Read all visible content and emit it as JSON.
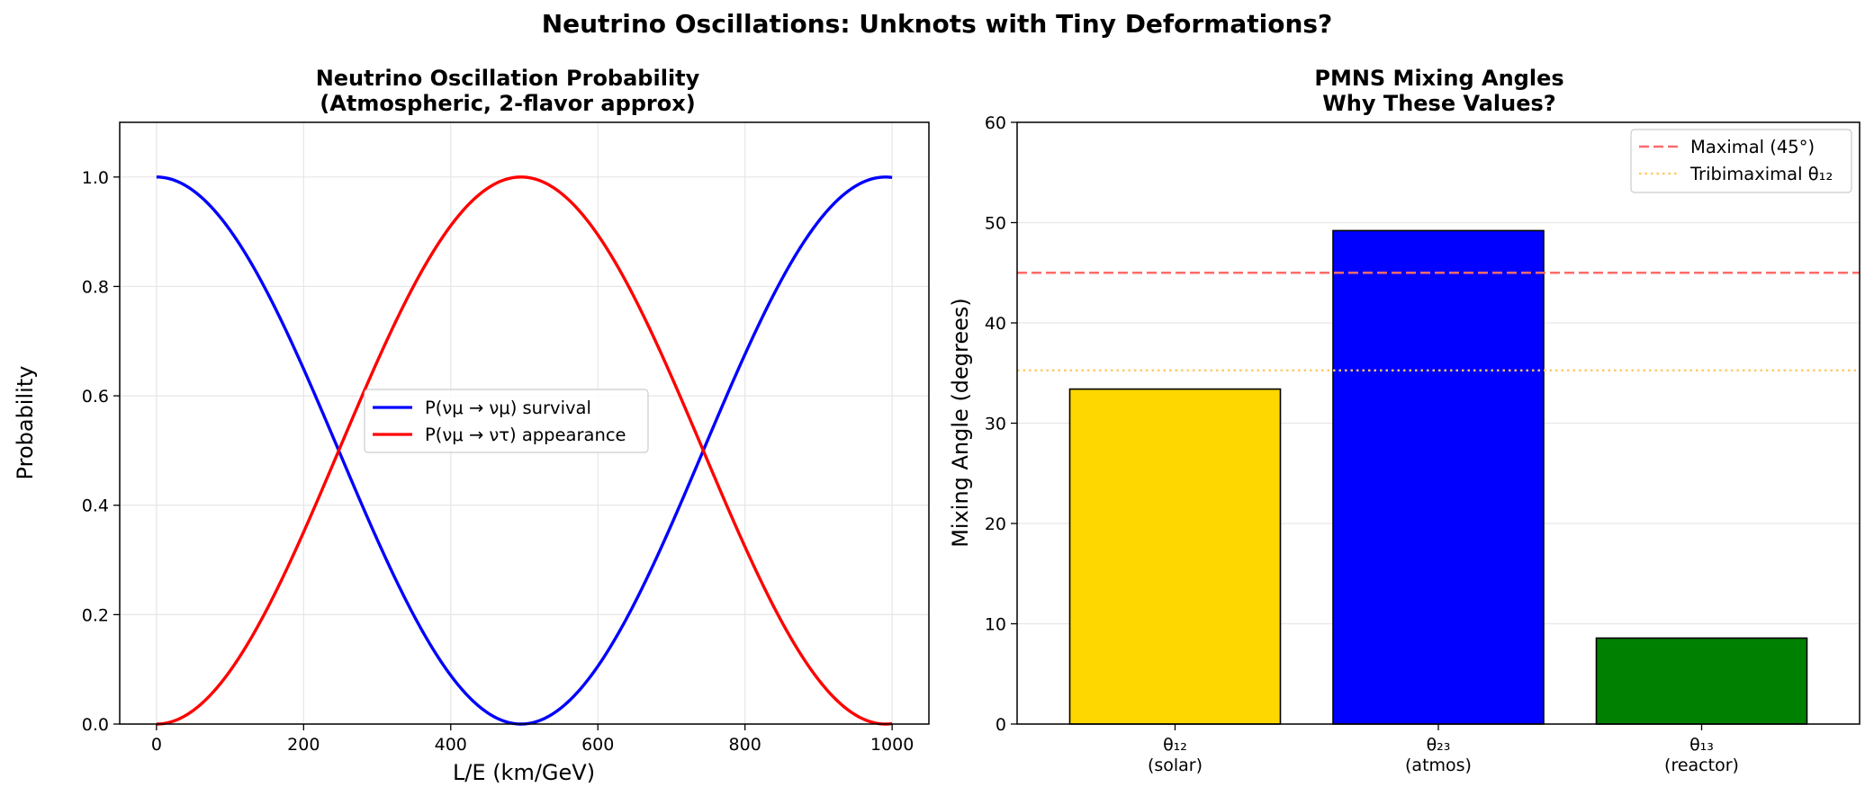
{
  "suptitle": "Neutrino Oscillations: Unknots with Tiny Deformations?",
  "colors": {
    "survival": "#0000ff",
    "appearance": "#ff0000",
    "maximal_line": "#ff6b6b",
    "tribimaximal_line": "#ffc966",
    "grid": "#e6e6e6"
  },
  "chart_data": [
    {
      "type": "line",
      "title_line1": "Neutrino Oscillation Probability",
      "title_line2": "(Atmospheric, 2-flavor approx)",
      "xlabel": "L/E (km/GeV)",
      "ylabel": "Probability",
      "xlim": [
        -50,
        1050
      ],
      "ylim": [
        0,
        1.1
      ],
      "xticks": [
        0,
        200,
        400,
        600,
        800,
        1000
      ],
      "xtick_labels": [
        "0",
        "200",
        "400",
        "600",
        "800",
        "1000"
      ],
      "yticks": [
        0,
        0.2,
        0.4,
        0.6,
        0.8,
        1.0
      ],
      "ytick_labels": [
        "0.0",
        "0.2",
        "0.4",
        "0.6",
        "0.8",
        "1.0"
      ],
      "grid": true,
      "legend_position": "center",
      "x_range": [
        0,
        1000
      ],
      "oscillation_phase_per_unit": 0.00317,
      "series": [
        {
          "name": "P(νμ → νμ) survival",
          "formula": "1 - sin^2(k*x)",
          "color_key": "survival"
        },
        {
          "name": "P(νμ → ντ) appearance",
          "formula": "sin^2(k*x)",
          "color_key": "appearance"
        }
      ]
    },
    {
      "type": "bar",
      "title_line1": "PMNS Mixing Angles",
      "title_line2": "Why These Values?",
      "xlabel": "",
      "ylabel": "Mixing Angle (degrees)",
      "ylim": [
        0,
        60
      ],
      "yticks": [
        0,
        10,
        20,
        30,
        40,
        50,
        60
      ],
      "ytick_labels": [
        "0",
        "10",
        "20",
        "30",
        "40",
        "50",
        "60"
      ],
      "grid": true,
      "legend_position": "upper right",
      "categories": [
        {
          "line1": "θ₁₂",
          "line2": "(solar)"
        },
        {
          "line1": "θ₂₃",
          "line2": "(atmos)"
        },
        {
          "line1": "θ₁₃",
          "line2": "(reactor)"
        }
      ],
      "values": [
        33.4,
        49.2,
        8.57
      ],
      "bar_colors": [
        "#ffd700",
        "#0000ff",
        "#008000"
      ],
      "reference_lines": [
        {
          "name": "Maximal (45°)",
          "value": 45,
          "style": "dashed",
          "color_key": "maximal_line"
        },
        {
          "name": "Tribimaximal θ₁₂",
          "value": 35.26,
          "style": "dotted",
          "color_key": "tribimaximal_line"
        }
      ]
    }
  ]
}
